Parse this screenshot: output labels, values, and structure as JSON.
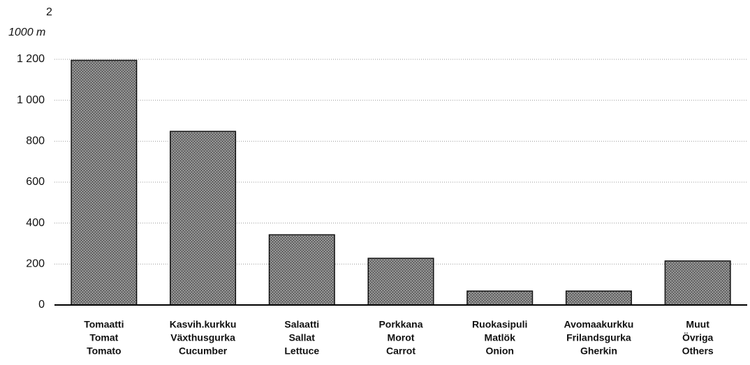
{
  "chart_data": {
    "type": "bar",
    "y_label": "1000 m",
    "y_label_superscript": "2",
    "categories": [
      [
        "Tomaatti",
        "Tomat",
        "Tomato"
      ],
      [
        "Kasvih.kurkku",
        "Växthusgurka",
        "Cucumber"
      ],
      [
        "Salaatti",
        "Sallat",
        "Lettuce"
      ],
      [
        "Porkkana",
        "Morot",
        "Carrot"
      ],
      [
        "Ruokasipuli",
        "Matlök",
        "Onion"
      ],
      [
        "Avomaakurkku",
        "Frilandsgurka",
        "Gherkin"
      ],
      [
        "Muut",
        "Övriga",
        "Others"
      ]
    ],
    "values": [
      1195,
      848,
      343,
      228,
      68,
      68,
      215
    ],
    "color": "#7a7a7a",
    "ylim": [
      0,
      1200
    ],
    "yticks": [
      0,
      200,
      400,
      600,
      800,
      {
        "value": 1000,
        "label": "1 000"
      },
      {
        "value": 1200,
        "label": "1 200"
      }
    ],
    "grid": true
  }
}
